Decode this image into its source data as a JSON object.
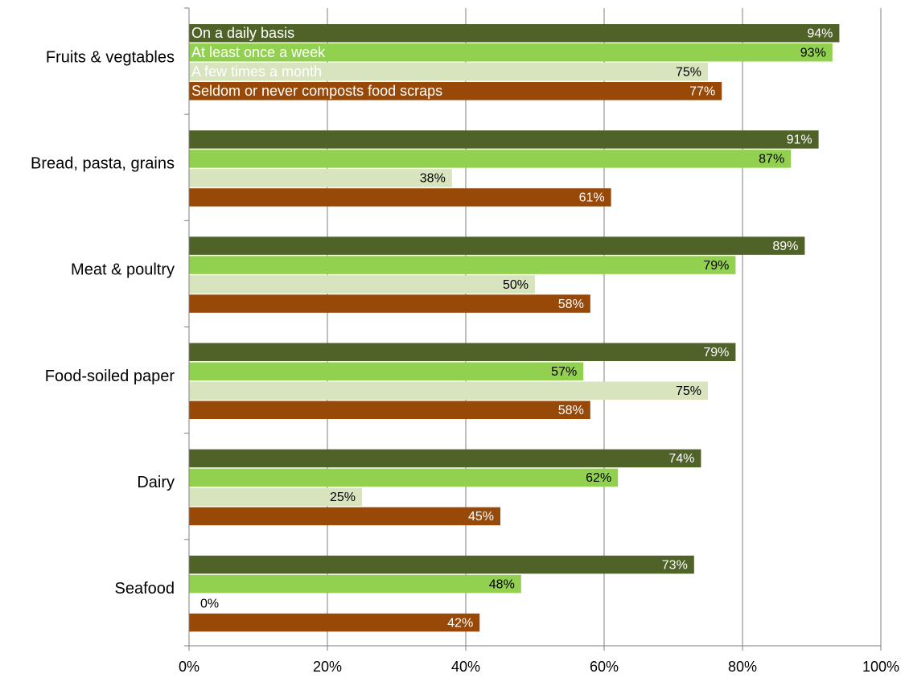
{
  "chart_data": {
    "type": "bar",
    "orientation": "horizontal",
    "categories": [
      "Fruits & vegtables",
      "Bread, pasta, grains",
      "Meat & poultry",
      "Food-soiled paper",
      "Dairy",
      "Seafood"
    ],
    "series": [
      {
        "name": "On a daily basis",
        "values": [
          94,
          91,
          89,
          79,
          74,
          73
        ],
        "color": "#4f6228",
        "label_color": "#ffffff"
      },
      {
        "name": "At least once a week",
        "values": [
          93,
          87,
          79,
          57,
          62,
          48
        ],
        "color": "#92d050",
        "label_color": "#000000"
      },
      {
        "name": "A few times a month",
        "values": [
          75,
          38,
          50,
          75,
          25,
          0
        ],
        "color": "#d7e4bd",
        "label_color": "#000000"
      },
      {
        "name": "Seldom or never composts food scraps",
        "values": [
          77,
          61,
          58,
          58,
          45,
          42
        ],
        "color": "#984807",
        "label_color": "#ffffff"
      }
    ],
    "value_format": "{v}%",
    "xlim": [
      0,
      100
    ],
    "x_ticks": [
      0,
      20,
      40,
      60,
      80,
      100
    ],
    "x_tick_labels": [
      "0%",
      "20%",
      "40%",
      "60%",
      "80%",
      "100%"
    ],
    "grid": "vertical",
    "gridline_color": "#7f7f7f",
    "legend_placement": "inside first category group"
  }
}
